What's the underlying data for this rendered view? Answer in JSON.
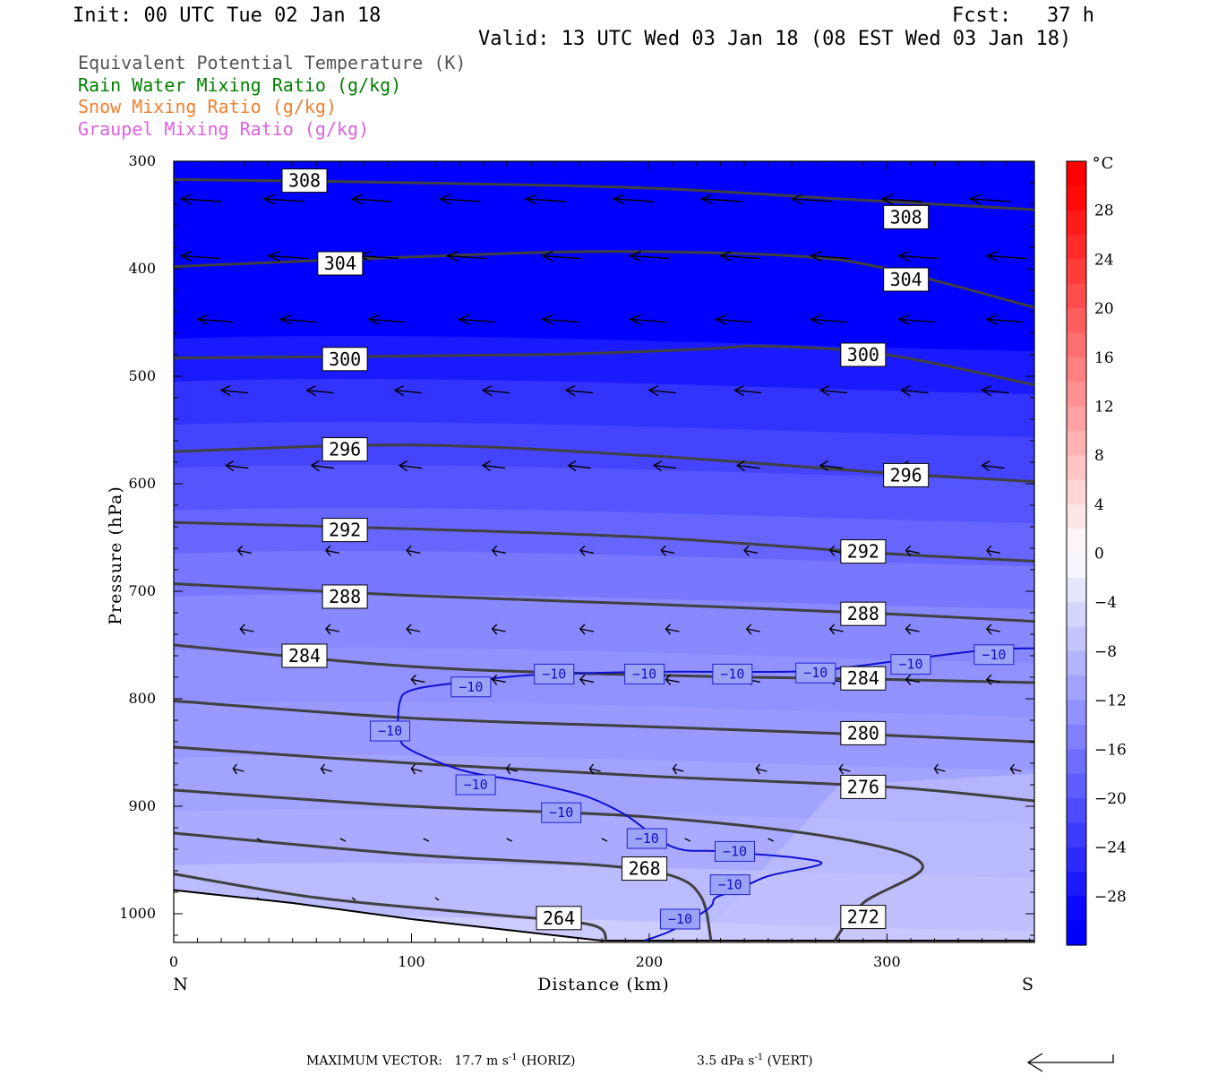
{
  "header": {
    "init": "Init: 00 UTC Tue 02 Jan 18",
    "fcst": "Fcst:   37 h",
    "valid": "Valid: 13 UTC Wed 03 Jan 18 (08 EST Wed 03 Jan 18)"
  },
  "legend": [
    {
      "label": "Equivalent Potential Temperature (K)",
      "color": "#555555"
    },
    {
      "label": "Rain Water Mixing Ratio (g/kg)",
      "color": "#008000"
    },
    {
      "label": "Snow Mixing Ratio (g/kg)",
      "color": "#f08030"
    },
    {
      "label": "Graupel Mixing Ratio (g/kg)",
      "color": "#e060e0"
    }
  ],
  "footer": {
    "max_vector_label": "MAXIMUM VECTOR:",
    "horiz_value": "17.7 m s",
    "horiz_unit": "(HORIZ)",
    "vert_value": "3.5 dPa s",
    "vert_unit": "(VERT)",
    "exponent": "-1"
  },
  "chart_data": {
    "type": "cross-section",
    "xlabel": "Distance (km)",
    "ylabel": "Pressure (hPa)",
    "xlim": [
      0,
      362
    ],
    "ylim": [
      300,
      1030
    ],
    "y_scale": "linear, inverted",
    "x_ticks": [
      0,
      100,
      200,
      300
    ],
    "y_ticks": [
      300,
      400,
      500,
      600,
      700,
      800,
      900,
      1000
    ],
    "x_end_labels": {
      "left": "N",
      "right": "S"
    },
    "colorbar": {
      "unit": "°C",
      "tick_labels": [
        "28",
        "24",
        "20",
        "16",
        "12",
        "8",
        "4",
        "0",
        "−4",
        "−8",
        "−12",
        "−16",
        "−20",
        "−24",
        "−28"
      ],
      "range": [
        -32,
        32
      ],
      "step": 2
    },
    "theta_e_contours": [
      {
        "value": 308,
        "points": [
          [
            0,
            317
          ],
          [
            100,
            320
          ],
          [
            200,
            325
          ],
          [
            280,
            335
          ],
          [
            362,
            345
          ]
        ],
        "labels": [
          [
            55,
            318
          ],
          [
            308,
            352
          ]
        ]
      },
      {
        "value": 304,
        "points": [
          [
            0,
            398
          ],
          [
            100,
            389
          ],
          [
            180,
            384
          ],
          [
            260,
            388
          ],
          [
            300,
            400
          ],
          [
            362,
            436
          ]
        ],
        "labels": [
          [
            70,
            395
          ],
          [
            308,
            410
          ]
        ]
      },
      {
        "value": 300,
        "points": [
          [
            0,
            483
          ],
          [
            150,
            480
          ],
          [
            220,
            475
          ],
          [
            250,
            472
          ],
          [
            300,
            480
          ],
          [
            362,
            508
          ]
        ],
        "labels": [
          [
            72,
            484
          ],
          [
            290,
            480
          ]
        ]
      },
      {
        "value": 296,
        "points": [
          [
            0,
            570
          ],
          [
            100,
            564
          ],
          [
            200,
            574
          ],
          [
            300,
            590
          ],
          [
            362,
            598
          ]
        ],
        "labels": [
          [
            72,
            568
          ],
          [
            308,
            592
          ]
        ]
      },
      {
        "value": 292,
        "points": [
          [
            0,
            636
          ],
          [
            100,
            642
          ],
          [
            200,
            650
          ],
          [
            300,
            665
          ],
          [
            362,
            672
          ]
        ],
        "labels": [
          [
            72,
            643
          ],
          [
            290,
            663
          ]
        ]
      },
      {
        "value": 288,
        "points": [
          [
            0,
            693
          ],
          [
            100,
            704
          ],
          [
            200,
            712
          ],
          [
            300,
            721
          ],
          [
            362,
            728
          ]
        ],
        "labels": [
          [
            72,
            705
          ],
          [
            290,
            721
          ]
        ]
      },
      {
        "value": 284,
        "points": [
          [
            0,
            750
          ],
          [
            100,
            770
          ],
          [
            200,
            778
          ],
          [
            300,
            782
          ],
          [
            362,
            785
          ]
        ],
        "labels": [
          [
            55,
            760
          ],
          [
            290,
            781
          ]
        ]
      },
      {
        "value": 280,
        "points": [
          [
            0,
            802
          ],
          [
            100,
            818
          ],
          [
            200,
            826
          ],
          [
            300,
            834
          ],
          [
            362,
            840
          ]
        ],
        "labels": [
          [
            290,
            832
          ]
        ]
      },
      {
        "value": 276,
        "points": [
          [
            0,
            845
          ],
          [
            100,
            860
          ],
          [
            200,
            872
          ],
          [
            300,
            882
          ],
          [
            362,
            895
          ]
        ],
        "labels": [
          [
            290,
            882
          ]
        ]
      },
      {
        "value": 272,
        "points": [
          [
            0,
            885
          ],
          [
            100,
            900
          ],
          [
            200,
            910
          ],
          [
            280,
            930
          ],
          [
            315,
            955
          ],
          [
            290,
            990
          ],
          [
            278,
            1025
          ]
        ],
        "labels": [
          [
            290,
            1003
          ]
        ]
      },
      {
        "value": 268,
        "points": [
          [
            0,
            925
          ],
          [
            100,
            945
          ],
          [
            180,
            955
          ],
          [
            210,
            965
          ],
          [
            222,
            985
          ],
          [
            226,
            1025
          ]
        ],
        "labels": [
          [
            198,
            958
          ]
        ]
      },
      {
        "value": 264,
        "points": [
          [
            0,
            963
          ],
          [
            60,
            985
          ],
          [
            130,
            1000
          ],
          [
            175,
            1010
          ],
          [
            182,
            1025
          ]
        ],
        "labels": [
          [
            162,
            1004
          ]
        ]
      }
    ],
    "temperature_contour": {
      "value": -10,
      "points": [
        [
          362,
          753
        ],
        [
          340,
          755
        ],
        [
          300,
          766
        ],
        [
          270,
          774
        ],
        [
          240,
          775
        ],
        [
          200,
          775
        ],
        [
          150,
          778
        ],
        [
          120,
          785
        ],
        [
          100,
          792
        ],
        [
          95,
          804
        ],
        [
          95,
          835
        ],
        [
          100,
          848
        ],
        [
          122,
          867
        ],
        [
          145,
          876
        ],
        [
          160,
          883
        ],
        [
          175,
          892
        ],
        [
          190,
          908
        ],
        [
          210,
          938
        ],
        [
          230,
          942
        ],
        [
          262,
          948
        ],
        [
          272,
          954
        ],
        [
          250,
          965
        ],
        [
          237,
          978
        ],
        [
          228,
          985
        ],
        [
          225,
          995
        ],
        [
          210,
          1015
        ],
        [
          198,
          1025
        ]
      ],
      "labels": [
        [
          125,
          789
        ],
        [
          160,
          777
        ],
        [
          198,
          777
        ],
        [
          235,
          777
        ],
        [
          270,
          776
        ],
        [
          310,
          768
        ],
        [
          345,
          759
        ],
        [
          91,
          830
        ],
        [
          127,
          880
        ],
        [
          163,
          906
        ],
        [
          199,
          930
        ],
        [
          236,
          942
        ],
        [
          234,
          973
        ],
        [
          213,
          1005
        ]
      ]
    },
    "wind_arrows": [
      {
        "p": 335,
        "x": [
          3,
          38,
          75,
          112,
          148,
          185,
          222,
          260,
          298,
          335
        ],
        "len": 45
      },
      {
        "p": 388,
        "x": [
          3,
          40,
          78,
          115,
          155,
          192,
          230,
          268,
          305,
          342
        ],
        "len": 44
      },
      {
        "p": 447,
        "x": [
          10,
          45,
          82,
          120,
          155,
          192,
          228,
          268,
          305,
          342
        ],
        "len": 40
      },
      {
        "p": 513,
        "x": [
          20,
          56,
          93,
          130,
          165,
          200,
          236,
          272,
          306,
          340
        ],
        "len": 30
      },
      {
        "p": 583,
        "x": [
          22,
          58,
          95,
          130,
          166,
          202,
          237,
          272,
          306,
          340
        ],
        "len": 25
      },
      {
        "p": 662,
        "x": [
          27,
          64,
          98,
          134,
          171,
          205,
          240,
          276,
          308,
          342
        ],
        "len": 15
      },
      {
        "p": 735,
        "x": [
          28,
          64,
          98,
          134,
          171,
          207,
          241,
          276,
          308,
          342
        ],
        "len": 15
      },
      {
        "p": 782,
        "x": [
          100,
          134,
          171,
          207,
          241,
          276,
          308,
          342
        ],
        "len": 15
      },
      {
        "p": 865,
        "x": [
          25,
          62,
          100,
          140,
          175,
          210,
          245,
          280,
          320,
          352
        ],
        "len": 12
      },
      {
        "p": 930,
        "x": [
          35,
          70,
          105,
          140,
          180,
          215,
          250
        ],
        "len": 6
      },
      {
        "p": 985,
        "x": [
          35,
          75,
          110
        ],
        "len": 4
      }
    ],
    "surface_boundary": [
      [
        0,
        978
      ],
      [
        50,
        990
      ],
      [
        100,
        1005
      ],
      [
        140,
        1015
      ],
      [
        180,
        1025
      ],
      [
        362,
        1025
      ]
    ],
    "max_vector_arrow": true
  }
}
